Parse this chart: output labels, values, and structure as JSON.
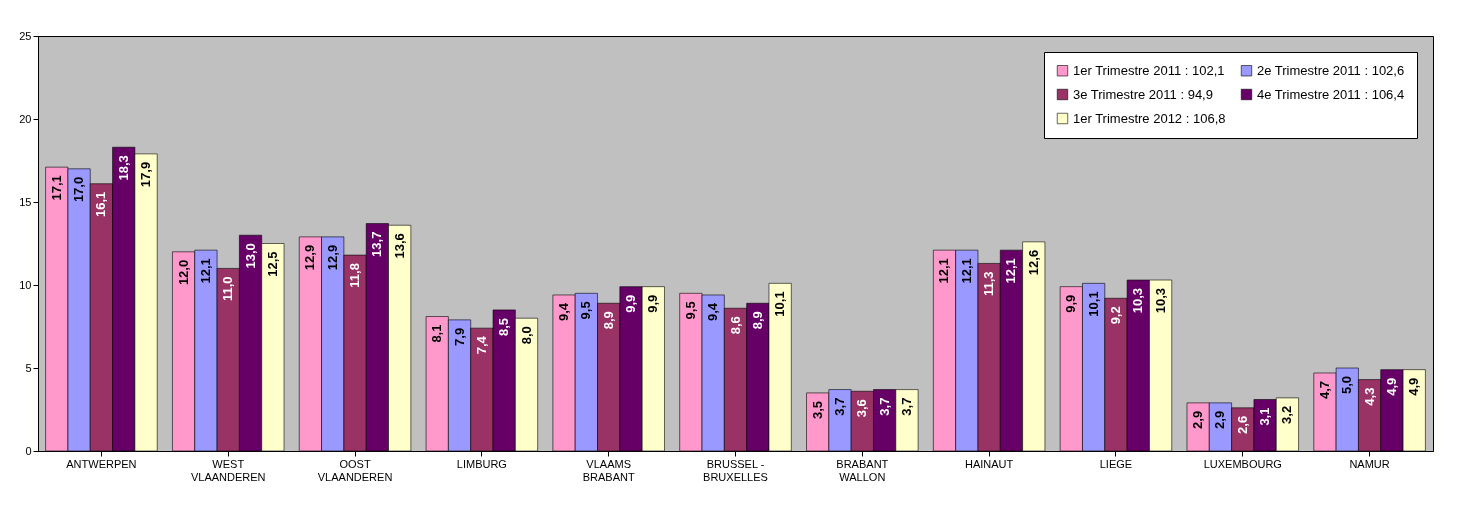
{
  "chart_data": {
    "type": "bar",
    "categories": [
      "ANTWERPEN",
      "WEST VLAANDEREN",
      "OOST VLAANDEREN",
      "LIMBURG",
      "VLAAMS BRABANT",
      "BRUSSEL - BRUXELLES",
      "BRABANT WALLON",
      "HAINAUT",
      "LIEGE",
      "LUXEMBOURG",
      "NAMUR"
    ],
    "series": [
      {
        "name": "1er Trimestre 2011 : 102,1",
        "color": "#ff99cc",
        "values": [
          17.1,
          12.0,
          12.9,
          8.1,
          9.4,
          9.5,
          3.5,
          12.1,
          9.9,
          2.9,
          4.7
        ],
        "value_labels": [
          "17,1",
          "12,0",
          "12,9",
          "8,1",
          "9,4",
          "9,5",
          "3,5",
          "12,1",
          "9,9",
          "2,9",
          "4,7"
        ]
      },
      {
        "name": "2e Trimestre 2011 : 102,6",
        "color": "#9999ff",
        "values": [
          17.0,
          12.1,
          12.9,
          7.9,
          9.5,
          9.4,
          3.7,
          12.1,
          10.1,
          2.9,
          5.0
        ],
        "value_labels": [
          "17,0",
          "12,1",
          "12,9",
          "7,9",
          "9,5",
          "9,4",
          "3,7",
          "12,1",
          "10,1",
          "2,9",
          "5,0"
        ]
      },
      {
        "name": "3e Trimestre 2011 : 94,9",
        "color": "#993366",
        "values": [
          16.1,
          11.0,
          11.8,
          7.4,
          8.9,
          8.6,
          3.6,
          11.3,
          9.2,
          2.6,
          4.3
        ],
        "value_labels": [
          "16,1",
          "11,0",
          "11,8",
          "7,4",
          "8,9",
          "8,6",
          "3,6",
          "11,3",
          "9,2",
          "2,6",
          "4,3"
        ]
      },
      {
        "name": "4e Trimestre 2011 : 106,4",
        "color": "#660066",
        "values": [
          18.3,
          13.0,
          13.7,
          8.5,
          9.9,
          8.9,
          3.7,
          12.1,
          10.3,
          3.1,
          4.9
        ],
        "value_labels": [
          "18,3",
          "13,0",
          "13,7",
          "8,5",
          "9,9",
          "8,9",
          "3,7",
          "12,1",
          "10,3",
          "3,1",
          "4,9"
        ]
      },
      {
        "name": "1er Trimestre 2012 : 106,8",
        "color": "#ffffcc",
        "values": [
          17.9,
          12.5,
          13.6,
          8.0,
          9.9,
          10.1,
          3.7,
          12.6,
          10.3,
          3.2,
          4.9
        ],
        "value_labels": [
          "17,9",
          "12,5",
          "13,6",
          "8,0",
          "9,9",
          "10,1",
          "3,7",
          "12,6",
          "10,3",
          "3,2",
          "4,9"
        ]
      }
    ],
    "ylim": [
      0,
      25
    ],
    "yticks": [
      0,
      5,
      10,
      15,
      20,
      25
    ],
    "grid": false,
    "legend": "top right"
  }
}
